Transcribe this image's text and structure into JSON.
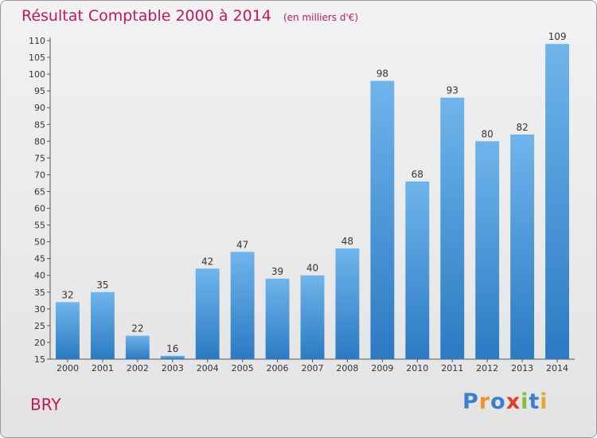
{
  "chart_data": {
    "type": "bar",
    "title": "Résultat Comptable 2000 à 2014",
    "subtitle": "(en milliers d'€)",
    "categories": [
      "2000",
      "2001",
      "2002",
      "2003",
      "2004",
      "2005",
      "2006",
      "2007",
      "2008",
      "2009",
      "2010",
      "2011",
      "2012",
      "2013",
      "2014"
    ],
    "values": [
      32,
      35,
      22,
      16,
      42,
      47,
      39,
      40,
      48,
      98,
      68,
      93,
      80,
      82,
      109
    ],
    "ylim": [
      15,
      110
    ],
    "yticks": [
      15,
      20,
      25,
      30,
      35,
      40,
      45,
      50,
      55,
      60,
      65,
      70,
      75,
      80,
      85,
      90,
      95,
      100,
      105,
      110
    ],
    "xlabel": "",
    "ylabel": "",
    "grid": false
  },
  "label": {
    "commune": "BRY"
  },
  "brand": {
    "name": "Proxiti",
    "letters": [
      "P",
      "r",
      "o",
      "x",
      "i",
      "t",
      "i"
    ],
    "letter_colors": [
      "#3b7fd0",
      "#f0922a",
      "#3b7fd0",
      "#e33d2d",
      "#7cc242",
      "#3b7fd0",
      "#e3a72d"
    ]
  },
  "colors": {
    "bar_light": "#6fb5ec",
    "bar_dark": "#2b7ac2",
    "accent": "#c2185b",
    "axis": "#555555",
    "text": "#333333"
  }
}
